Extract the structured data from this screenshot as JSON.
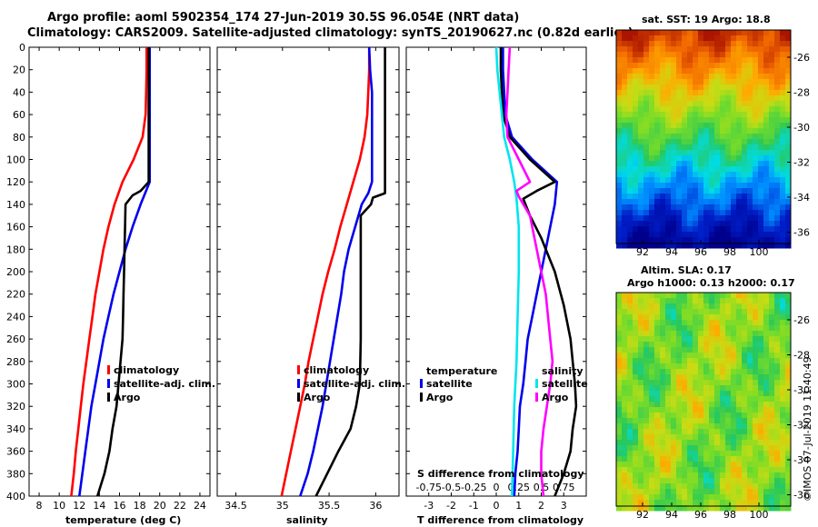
{
  "title_line1": "Argo profile: aoml 5902354_174 27-Jun-2019 30.5S 96.054E (NRT data)",
  "title_line2": "Climatology: CARS2009. Satellite-adjusted climatology: synTS_20190627.nc (0.82d earlier)",
  "colors": {
    "climatology": "#ff0000",
    "satellite": "#0000ee",
    "argo": "#000000",
    "sal_clim": "#ff00ff",
    "sal_sat": "#00e5ee"
  },
  "chart_data": [
    {
      "type": "line",
      "name": "temperature-profile",
      "xlabel": "temperature (deg C)",
      "ylabel": "pressure",
      "xlim": [
        7,
        25
      ],
      "ylim": [
        400,
        0
      ],
      "xticks": [
        8,
        10,
        12,
        14,
        16,
        18,
        20,
        22,
        24
      ],
      "yticks": [
        0,
        20,
        40,
        60,
        80,
        100,
        120,
        140,
        160,
        180,
        200,
        220,
        240,
        260,
        280,
        300,
        320,
        340,
        360,
        380,
        400
      ],
      "legend": [
        "climatology",
        "satellite-adj. clim.",
        "Argo"
      ],
      "series": [
        {
          "name": "climatology",
          "points": [
            [
              18.7,
              0
            ],
            [
              18.7,
              20
            ],
            [
              18.65,
              40
            ],
            [
              18.6,
              60
            ],
            [
              18.3,
              80
            ],
            [
              17.4,
              100
            ],
            [
              16.3,
              120
            ],
            [
              15.5,
              140
            ],
            [
              14.9,
              160
            ],
            [
              14.4,
              180
            ],
            [
              14.0,
              200
            ],
            [
              13.6,
              220
            ],
            [
              13.3,
              240
            ],
            [
              13.0,
              260
            ],
            [
              12.7,
              280
            ],
            [
              12.4,
              300
            ],
            [
              12.15,
              320
            ],
            [
              11.9,
              340
            ],
            [
              11.65,
              360
            ],
            [
              11.45,
              380
            ],
            [
              11.2,
              400
            ]
          ]
        },
        {
          "name": "satellite-adj. clim.",
          "points": [
            [
              19.0,
              0
            ],
            [
              19.0,
              20
            ],
            [
              19.0,
              40
            ],
            [
              19.0,
              60
            ],
            [
              19.0,
              80
            ],
            [
              19.0,
              100
            ],
            [
              19.0,
              120
            ],
            [
              18.1,
              140
            ],
            [
              17.3,
              160
            ],
            [
              16.6,
              180
            ],
            [
              16.0,
              200
            ],
            [
              15.4,
              220
            ],
            [
              14.9,
              240
            ],
            [
              14.4,
              260
            ],
            [
              14.0,
              280
            ],
            [
              13.6,
              300
            ],
            [
              13.2,
              320
            ],
            [
              12.9,
              340
            ],
            [
              12.6,
              360
            ],
            [
              12.3,
              380
            ],
            [
              12.0,
              400
            ]
          ]
        },
        {
          "name": "Argo",
          "points": [
            [
              18.9,
              0
            ],
            [
              18.9,
              40
            ],
            [
              18.9,
              80
            ],
            [
              18.9,
              120
            ],
            [
              18.1,
              128
            ],
            [
              17.3,
              132
            ],
            [
              16.6,
              140
            ],
            [
              16.55,
              160
            ],
            [
              16.5,
              180
            ],
            [
              16.45,
              200
            ],
            [
              16.4,
              220
            ],
            [
              16.35,
              240
            ],
            [
              16.3,
              260
            ],
            [
              16.1,
              280
            ],
            [
              15.9,
              300
            ],
            [
              15.7,
              320
            ],
            [
              15.3,
              340
            ],
            [
              15.0,
              360
            ],
            [
              14.5,
              380
            ],
            [
              13.8,
              400
            ]
          ]
        }
      ]
    },
    {
      "type": "line",
      "name": "salinity-profile",
      "xlabel": "salinity",
      "xlim": [
        34.3,
        36.25
      ],
      "ylim": [
        400,
        0
      ],
      "xticks": [
        34.5,
        35,
        35.5,
        36
      ],
      "xticklabels": [
        "34.5",
        "35",
        "35.5",
        "36"
      ],
      "legend": [
        "climatology",
        "satellite-adj. clim.",
        "Argo"
      ],
      "series": [
        {
          "name": "climatology",
          "points": [
            [
              35.93,
              0
            ],
            [
              35.93,
              20
            ],
            [
              35.92,
              40
            ],
            [
              35.91,
              60
            ],
            [
              35.88,
              80
            ],
            [
              35.83,
              100
            ],
            [
              35.76,
              120
            ],
            [
              35.69,
              140
            ],
            [
              35.62,
              160
            ],
            [
              35.56,
              180
            ],
            [
              35.49,
              200
            ],
            [
              35.43,
              220
            ],
            [
              35.38,
              240
            ],
            [
              35.33,
              260
            ],
            [
              35.28,
              280
            ],
            [
              35.24,
              300
            ],
            [
              35.19,
              320
            ],
            [
              35.14,
              340
            ],
            [
              35.09,
              360
            ],
            [
              35.04,
              380
            ],
            [
              34.99,
              400
            ]
          ]
        },
        {
          "name": "satellite-adj. clim.",
          "points": [
            [
              35.93,
              0
            ],
            [
              35.94,
              20
            ],
            [
              35.96,
              40
            ],
            [
              35.96,
              80
            ],
            [
              35.96,
              120
            ],
            [
              35.92,
              130
            ],
            [
              35.85,
              140
            ],
            [
              35.78,
              160
            ],
            [
              35.71,
              180
            ],
            [
              35.66,
              200
            ],
            [
              35.63,
              220
            ],
            [
              35.59,
              240
            ],
            [
              35.55,
              260
            ],
            [
              35.51,
              280
            ],
            [
              35.47,
              300
            ],
            [
              35.43,
              320
            ],
            [
              35.38,
              340
            ],
            [
              35.33,
              360
            ],
            [
              35.27,
              380
            ],
            [
              35.19,
              400
            ]
          ]
        },
        {
          "name": "Argo",
          "points": [
            [
              36.1,
              0
            ],
            [
              36.1,
              40
            ],
            [
              36.1,
              80
            ],
            [
              36.1,
              120
            ],
            [
              36.1,
              130
            ],
            [
              35.97,
              134
            ],
            [
              35.95,
              140
            ],
            [
              35.84,
              150
            ],
            [
              35.84,
              200
            ],
            [
              35.84,
              260
            ],
            [
              35.83,
              300
            ],
            [
              35.79,
              320
            ],
            [
              35.73,
              340
            ],
            [
              35.6,
              360
            ],
            [
              35.48,
              380
            ],
            [
              35.36,
              400
            ]
          ]
        }
      ]
    },
    {
      "type": "line",
      "name": "difference-profile",
      "xlabel": "T difference from climatology",
      "xlabel_top": "S difference from climatology",
      "xlim": [
        -4,
        4
      ],
      "ylim": [
        400,
        0
      ],
      "xticks": [
        -3,
        -2,
        -1,
        0,
        1,
        2,
        3
      ],
      "xticklabels": [
        "-3",
        "-2",
        "-1",
        "0",
        "1",
        "2",
        "3"
      ],
      "sticks": [
        -3,
        -2,
        -1,
        0,
        1,
        2,
        3
      ],
      "sticklabels": [
        "-0.75",
        "-0.5",
        "-0.25",
        "0",
        "0.25",
        "0.5",
        "0.75"
      ],
      "legend_t": [
        "temperature",
        "satellite",
        "Argo"
      ],
      "legend_s": [
        "salinity",
        "satellite",
        "Argo"
      ],
      "series": [
        {
          "name": "T satellite",
          "color": "satellite",
          "points": [
            [
              0.3,
              0
            ],
            [
              0.3,
              20
            ],
            [
              0.35,
              40
            ],
            [
              0.4,
              60
            ],
            [
              0.7,
              80
            ],
            [
              1.6,
              100
            ],
            [
              2.7,
              120
            ],
            [
              2.6,
              140
            ],
            [
              2.4,
              160
            ],
            [
              2.2,
              180
            ],
            [
              2.0,
              200
            ],
            [
              1.8,
              220
            ],
            [
              1.6,
              240
            ],
            [
              1.4,
              260
            ],
            [
              1.3,
              280
            ],
            [
              1.2,
              300
            ],
            [
              1.05,
              320
            ],
            [
              1.0,
              340
            ],
            [
              0.95,
              360
            ],
            [
              0.85,
              380
            ],
            [
              0.8,
              400
            ]
          ]
        },
        {
          "name": "T Argo",
          "color": "argo",
          "points": [
            [
              0.2,
              0
            ],
            [
              0.2,
              20
            ],
            [
              0.25,
              40
            ],
            [
              0.3,
              60
            ],
            [
              0.6,
              80
            ],
            [
              1.5,
              100
            ],
            [
              2.6,
              120
            ],
            [
              1.8,
              128
            ],
            [
              1.2,
              135
            ],
            [
              1.5,
              150
            ],
            [
              2.0,
              170
            ],
            [
              2.6,
              200
            ],
            [
              3.0,
              230
            ],
            [
              3.3,
              260
            ],
            [
              3.4,
              280
            ],
            [
              3.5,
              300
            ],
            [
              3.55,
              320
            ],
            [
              3.4,
              340
            ],
            [
              3.3,
              360
            ],
            [
              3.0,
              380
            ],
            [
              2.6,
              400
            ]
          ]
        },
        {
          "name": "S satellite",
          "color": "sal_sat",
          "points": [
            [
              0.0,
              0
            ],
            [
              0.05,
              20
            ],
            [
              0.15,
              40
            ],
            [
              0.25,
              60
            ],
            [
              0.35,
              80
            ],
            [
              0.6,
              100
            ],
            [
              0.8,
              120
            ],
            [
              0.9,
              135
            ],
            [
              1.0,
              160
            ],
            [
              1.0,
              200
            ],
            [
              0.95,
              240
            ],
            [
              0.9,
              280
            ],
            [
              0.8,
              320
            ],
            [
              0.75,
              360
            ],
            [
              0.7,
              400
            ]
          ]
        },
        {
          "name": "S Argo",
          "color": "sal_clim",
          "points": [
            [
              0.6,
              0
            ],
            [
              0.55,
              20
            ],
            [
              0.5,
              40
            ],
            [
              0.45,
              60
            ],
            [
              0.5,
              80
            ],
            [
              1.0,
              100
            ],
            [
              1.5,
              120
            ],
            [
              0.9,
              128
            ],
            [
              1.0,
              133
            ],
            [
              1.5,
              150
            ],
            [
              1.8,
              180
            ],
            [
              2.2,
              220
            ],
            [
              2.4,
              260
            ],
            [
              2.5,
              280
            ],
            [
              2.4,
              300
            ],
            [
              2.25,
              320
            ],
            [
              2.1,
              340
            ],
            [
              2.0,
              360
            ],
            [
              2.0,
              380
            ],
            [
              2.1,
              400
            ]
          ]
        }
      ]
    }
  ],
  "sst_map": {
    "title": "sat. SST: 19 Argo: 18.8",
    "xticklabels": [
      "92",
      "94",
      "96",
      "98",
      "100"
    ],
    "yticklabels": [
      "-26",
      "-28",
      "-30",
      "-32",
      "-34",
      "-36"
    ]
  },
  "sla_map": {
    "title1": "Altim. SLA: 0.17",
    "title2": "Argo h1000: 0.13 h2000: 0.17",
    "xticklabels": [
      "92",
      "94",
      "96",
      "98",
      "100"
    ],
    "yticklabels": [
      "-26",
      "-28",
      "-30",
      "-32",
      "-34",
      "-36"
    ]
  },
  "credit": "©IMOS 07-Jul-2019 11:40:49"
}
